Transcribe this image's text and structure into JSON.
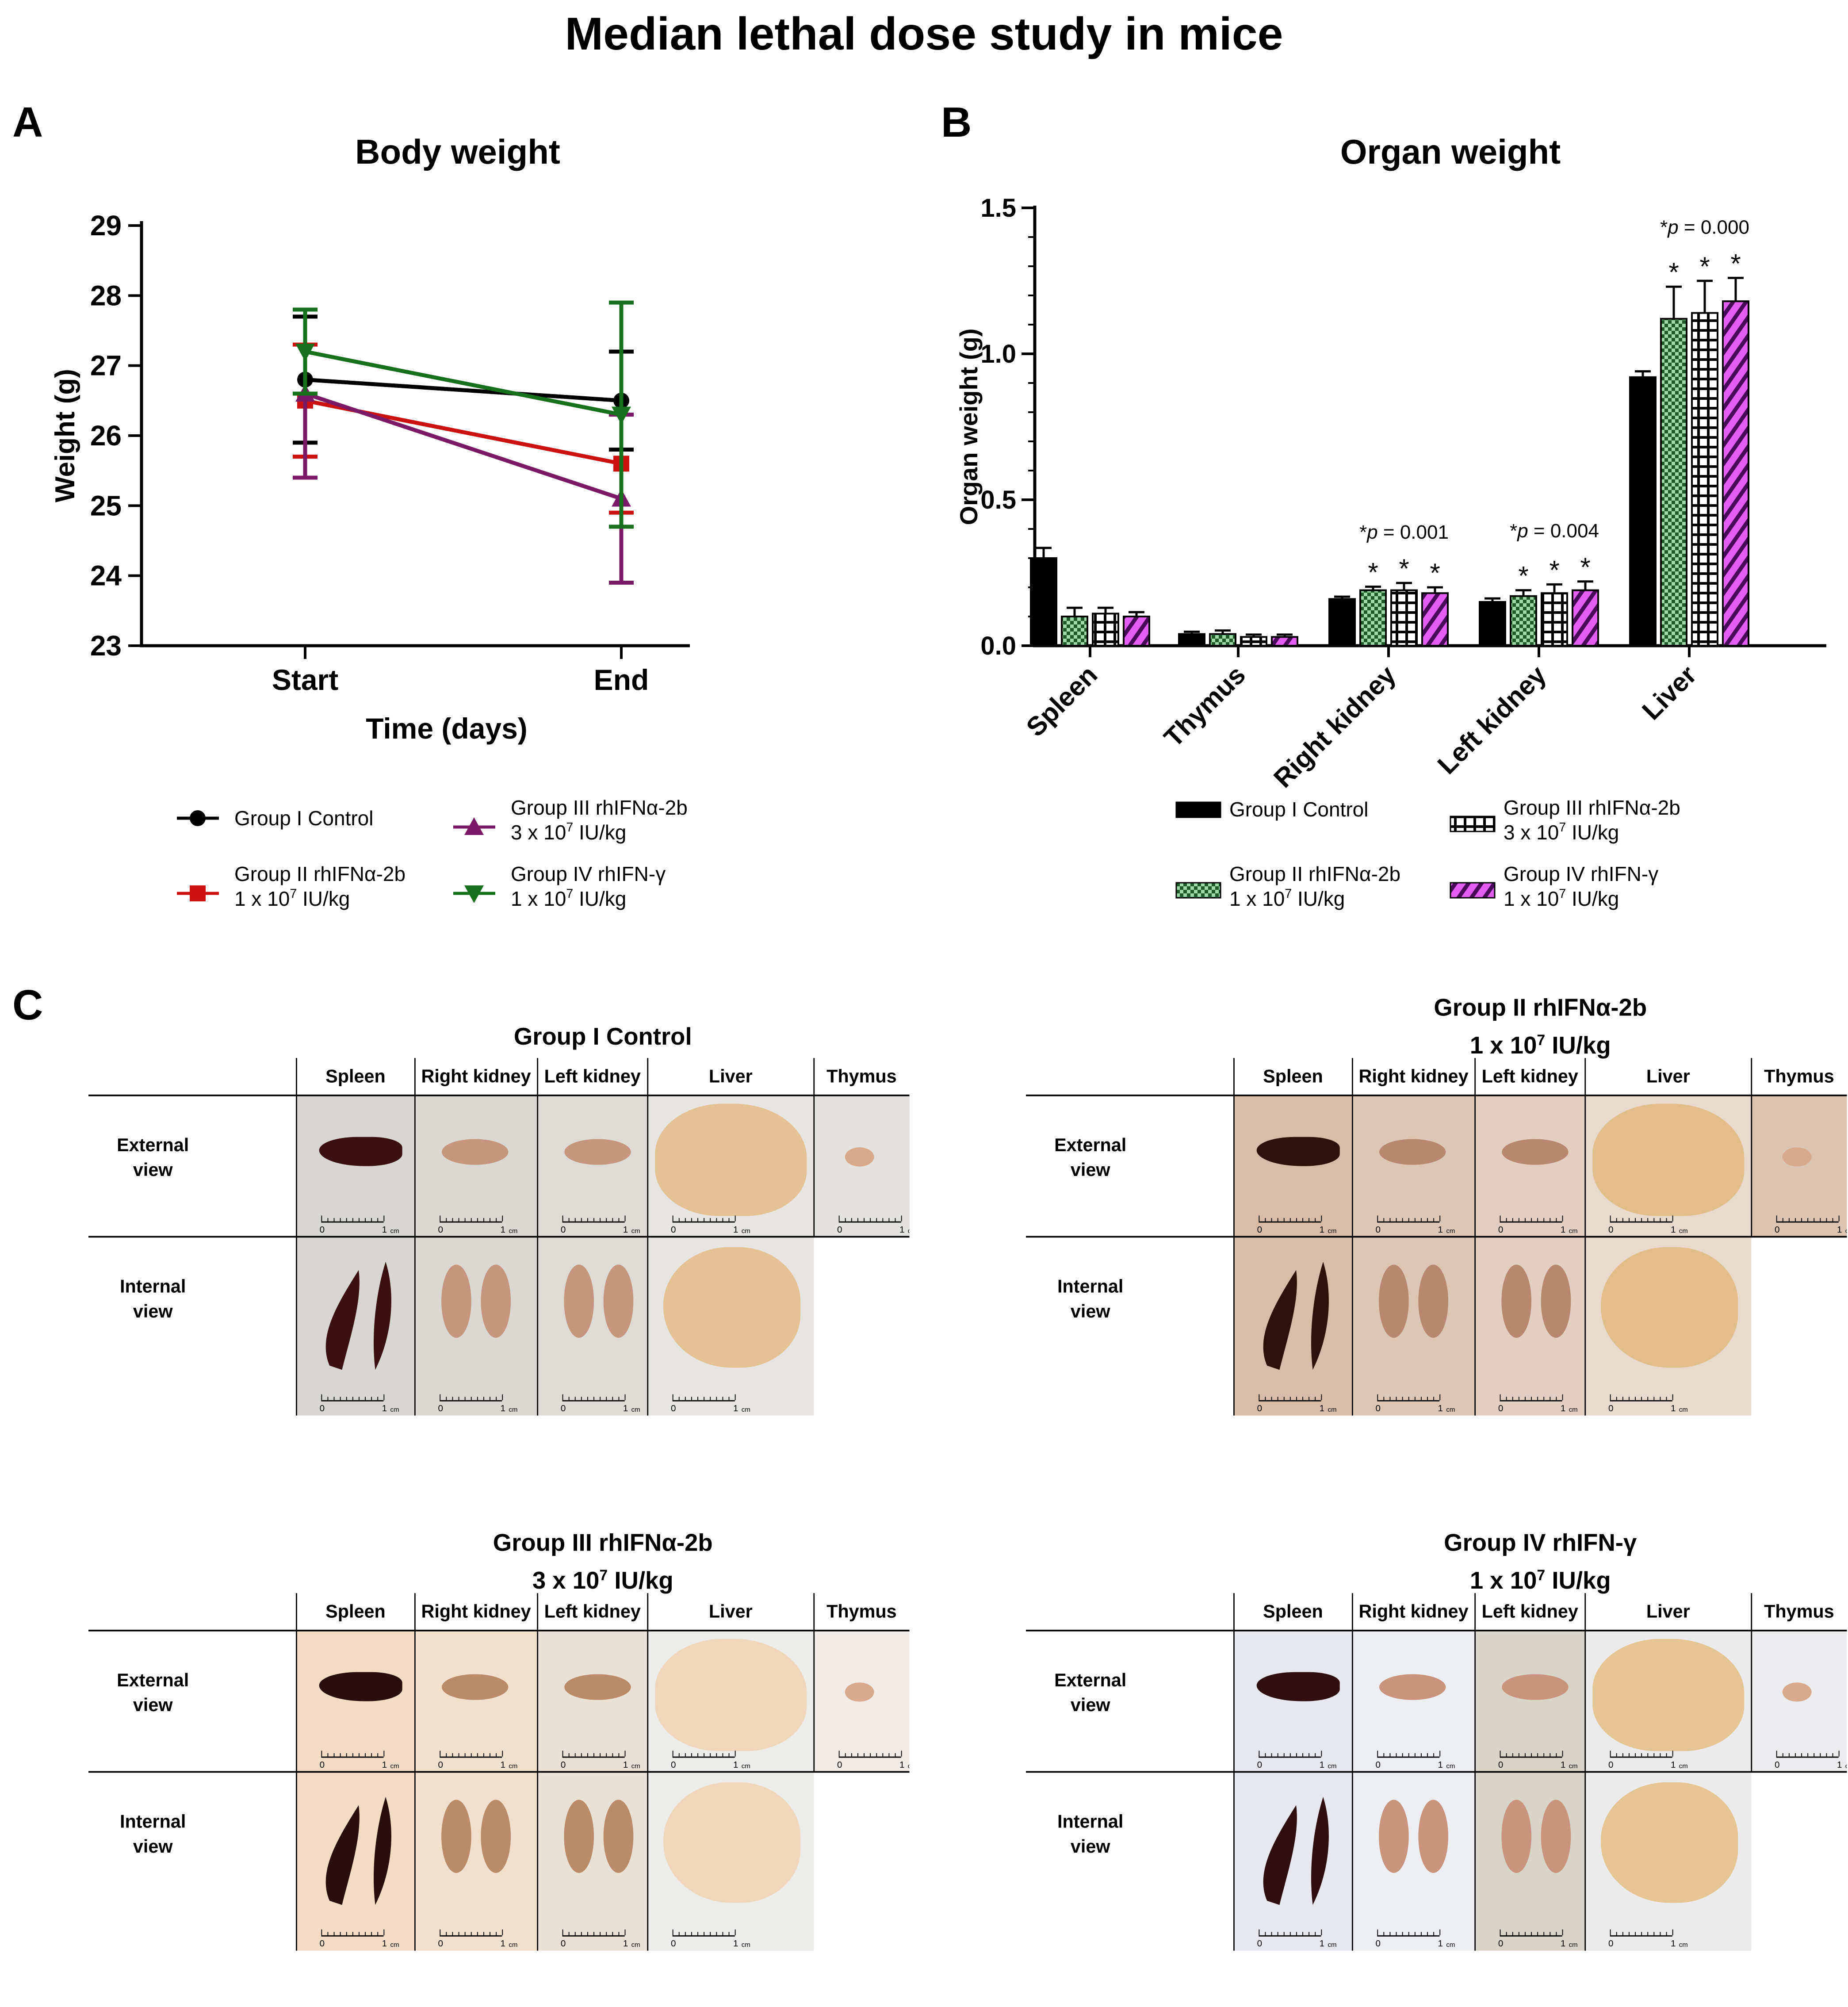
{
  "title": "Median lethal dose study in mice",
  "panels": {
    "a": "A",
    "b": "B",
    "c": "C"
  },
  "chart_data": [
    {
      "type": "line",
      "title": "Body weight",
      "xlabel": "Time  (days)",
      "ylabel": "Weight  (g)",
      "categories": [
        "Start",
        "End"
      ],
      "ylim": [
        23,
        29
      ],
      "yticks": [
        "23",
        "24",
        "25",
        "26",
        "27",
        "28",
        "29"
      ],
      "series": [
        {
          "name": "Group I Control",
          "legend": [
            "Group I Control"
          ],
          "color": "#000000",
          "marker": "circle",
          "values": [
            26.8,
            26.5
          ],
          "errors": [
            0.9,
            0.7
          ]
        },
        {
          "name": "Group II rhIFNα-2b 1 x 10^7 IU/kg",
          "legend": [
            "Group II rhIFNα-2b",
            "1 x 10",
            "7",
            " IU/kg"
          ],
          "color": "#cc1111",
          "marker": "square",
          "values": [
            26.5,
            25.6
          ],
          "errors": [
            0.8,
            0.7
          ]
        },
        {
          "name": "Group III rhIFNα-2b 3 x 10^7 IU/kg",
          "legend": [
            "Group III rhIFNα-2b",
            "3 x 10",
            "7",
            " IU/kg"
          ],
          "color": "#7a1a66",
          "marker": "triangle-up",
          "values": [
            26.6,
            25.1
          ],
          "errors": [
            1.2,
            1.2
          ]
        },
        {
          "name": "Group IV rhIFN-γ 1 x 10^7 IU/kg",
          "legend": [
            "Group IV rhIFN-γ",
            "1 x 10",
            "7",
            " IU/kg"
          ],
          "color": "#16701c",
          "marker": "triangle-down",
          "values": [
            27.2,
            26.3
          ],
          "errors": [
            0.6,
            1.6
          ]
        }
      ]
    },
    {
      "type": "bar",
      "title": "Organ weight",
      "ylabel": "Organ weight (g)",
      "categories": [
        "Spleen",
        "Thymus",
        "Right kidney",
        "Left kidney",
        "Liver"
      ],
      "ylim": [
        0,
        1.5
      ],
      "yticks": [
        "0.0",
        "0.5",
        "1.0",
        "1.5"
      ],
      "annotations": [
        {
          "category": "Right kidney",
          "prefix": "*",
          "p": "p",
          "text": " = 0.001"
        },
        {
          "category": "Left kidney",
          "prefix": "*",
          "p": "p",
          "text": " = 0.004"
        },
        {
          "category": "Liver",
          "prefix": "*",
          "p": "p",
          "text": " = 0.000"
        }
      ],
      "star": "*",
      "series": [
        {
          "name": "Group I Control",
          "legend": [
            "Group I Control"
          ],
          "pattern": "solid",
          "values": [
            0.3,
            0.04,
            0.16,
            0.15,
            0.92
          ],
          "errors": [
            0.035,
            0.008,
            0.008,
            0.012,
            0.02
          ],
          "significant": [
            false,
            false,
            false,
            false,
            false
          ]
        },
        {
          "name": "Group II rhIFNα-2b 1 x 10^7 IU/kg",
          "legend": [
            "Group II rhIFNα-2b",
            "1 x 10",
            "7",
            " IU/kg"
          ],
          "pattern": "green-check",
          "values": [
            0.1,
            0.04,
            0.19,
            0.17,
            1.12
          ],
          "errors": [
            0.03,
            0.012,
            0.012,
            0.02,
            0.11
          ],
          "significant": [
            false,
            false,
            true,
            true,
            true
          ]
        },
        {
          "name": "Group III rhIFNα-2b 3 x 10^7 IU/kg",
          "legend": [
            "Group III rhIFNα-2b",
            "3 x 10",
            "7",
            " IU/kg"
          ],
          "pattern": "grid",
          "values": [
            0.11,
            0.03,
            0.19,
            0.18,
            1.14
          ],
          "errors": [
            0.02,
            0.008,
            0.025,
            0.03,
            0.11
          ],
          "significant": [
            false,
            false,
            true,
            true,
            true
          ]
        },
        {
          "name": "Group IV rhIFN-γ 1 x 10^7 IU/kg",
          "legend": [
            "Group IV rhIFN-γ",
            "1 x 10",
            "7",
            " IU/kg"
          ],
          "pattern": "purple-stripe",
          "values": [
            0.1,
            0.03,
            0.18,
            0.19,
            1.18
          ],
          "errors": [
            0.015,
            0.008,
            0.02,
            0.03,
            0.08
          ],
          "significant": [
            false,
            false,
            true,
            true,
            true
          ]
        }
      ]
    }
  ],
  "photo_tables": {
    "columns": [
      "Spleen",
      "Right kidney",
      "Left kidney",
      "Liver",
      "Thymus"
    ],
    "rows": [
      "External\nview",
      "Internal\nview"
    ],
    "scale": {
      "zero": "0",
      "one": "1",
      "unit": "cm"
    },
    "groups": [
      {
        "title1": "Group I Control",
        "title2": "",
        "sup": "",
        "title2_end": ""
      },
      {
        "title1": "Group II rhIFNα-2b",
        "title2": "1 x 10",
        "sup": "7",
        "title2_end": " IU/kg"
      },
      {
        "title1": "Group III rhIFNα-2b",
        "title2": "3 x 10",
        "sup": "7",
        "title2_end": " IU/kg"
      },
      {
        "title1": "Group IV rhIFN-γ",
        "title2": "1 x 10",
        "sup": "7",
        "title2_end": " IU/kg"
      }
    ]
  }
}
